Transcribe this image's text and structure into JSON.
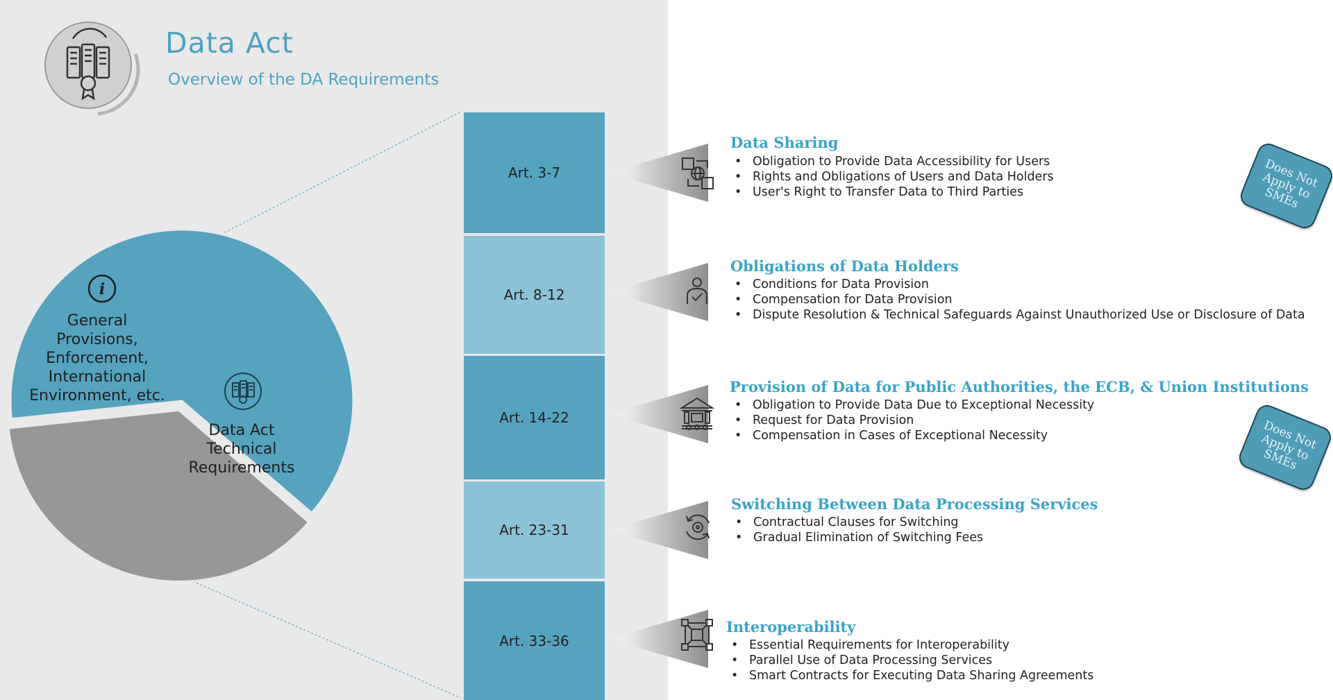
{
  "header": {
    "title": "Data Act",
    "subtitle": "Overview of the DA Requirements"
  },
  "pie": {
    "slices": [
      {
        "label": "General Provisions, Enforcement, International Environment, etc.",
        "lines": [
          "General",
          "Provisions,",
          "Enforcement,",
          "International",
          "Environment, etc."
        ],
        "share": 0.37,
        "color": "#979797",
        "icon": "info-icon"
      },
      {
        "label": "Data Act Technical Requirements",
        "lines": [
          "Data Act",
          "Technical",
          "Requirements"
        ],
        "share": 0.63,
        "color": "#55a3bf",
        "icon": "servers-icon"
      }
    ]
  },
  "sections": [
    {
      "article": "Art. 3-7",
      "title": "Data Sharing",
      "icon": "data-sharing-icon",
      "bullets": [
        "Obligation to Provide Data Accessibility for Users",
        "Rights and Obligations of Users and Data Holders",
        "User's Right to Transfer Data to Third Parties"
      ],
      "badge": "Does Not Apply to SMEs"
    },
    {
      "article": "Art. 8-12",
      "title": "Obligations of Data Holders",
      "icon": "data-holder-icon",
      "bullets": [
        "Conditions for Data Provision",
        "Compensation for Data Provision",
        "Dispute Resolution & Technical Safeguards Against Unauthorized Use or Disclosure of Data"
      ]
    },
    {
      "article": "Art. 14-22",
      "title": "Provision of Data for Public Authorities, the ECB, & Union Institutions",
      "icon": "public-authority-icon",
      "bullets": [
        "Obligation to Provide Data Due to Exceptional Necessity",
        "Request for Data Provision",
        "Compensation in Cases of Exceptional Necessity"
      ],
      "badge": "Does Not Apply to SMEs"
    },
    {
      "article": "Art. 23-31",
      "title": "Switching Between Data Processing Services",
      "icon": "switching-icon",
      "bullets": [
        "Contractual Clauses for Switching",
        "Gradual Elimination of Switching Fees"
      ]
    },
    {
      "article": "Art. 33-36",
      "title": "Interoperability",
      "icon": "interoperability-icon",
      "bullets": [
        "Essential Requirements for Interoperability",
        "Parallel Use of Data Processing Services",
        "Smart Contracts for Executing Data Sharing Agreements"
      ]
    }
  ],
  "colors": {
    "accent": "#3aa4c8",
    "dark_box": "#55a3bf",
    "light_box": "#8cc2d5",
    "gray_slice": "#979797"
  }
}
